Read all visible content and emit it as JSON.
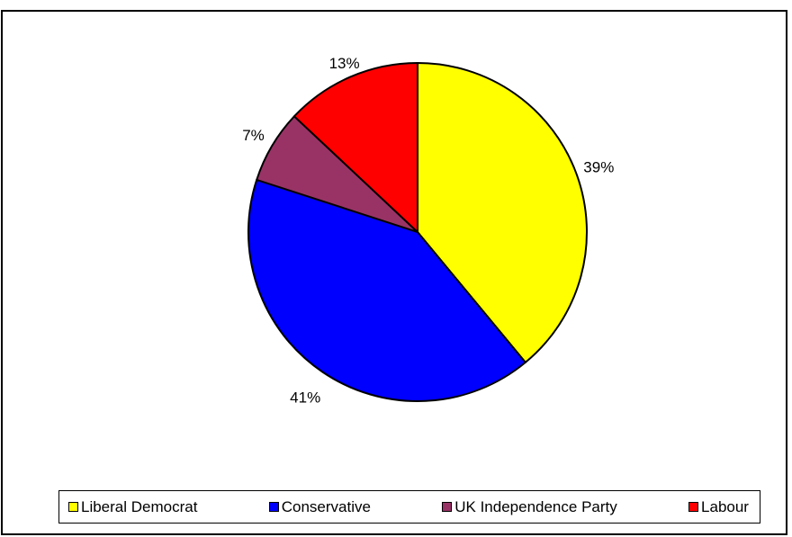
{
  "chart_data": {
    "type": "pie",
    "title": "",
    "slices": [
      {
        "label": "Liberal Democrat",
        "value": 39,
        "display": "39%",
        "color": "#FFFF00"
      },
      {
        "label": "Conservative",
        "value": 41,
        "display": "41%",
        "color": "#0000FF"
      },
      {
        "label": "UK Independence Party",
        "value": 7,
        "display": "7%",
        "color": "#993366"
      },
      {
        "label": "Labour",
        "value": 13,
        "display": "13%",
        "color": "#FF0000"
      }
    ],
    "start_angle": "12 o'clock",
    "direction": "clockwise",
    "legend_position": "bottom"
  }
}
